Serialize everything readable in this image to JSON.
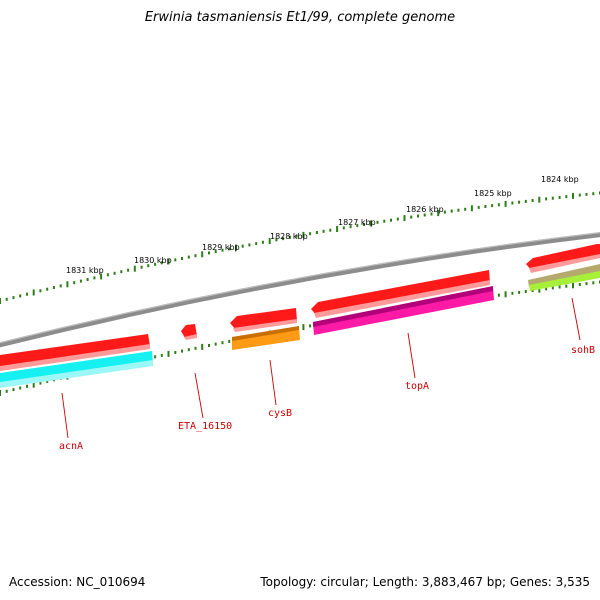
{
  "title": "Erwinia tasmaniensis Et1/99, complete genome",
  "footer": {
    "accession": "Accession: NC_010694",
    "summary": "Topology: circular; Length: 3,883,467 bp; Genes: 3,535"
  },
  "colors": {
    "backbone": "#8c8c8c",
    "tick": "#2e7d1a",
    "label": "#cc0000",
    "forward_gene": "#ff1a1a",
    "cyan": "#16f0f0",
    "orange": "#ff9a14",
    "magenta": "#ff1aa6",
    "olive": "#b5aa6e",
    "lime": "#a6f03a"
  },
  "scale_labels": [
    "1831 kbp",
    "1830 kbp",
    "1829 kbp",
    "1828 kbp",
    "1827 kbp",
    "1826 kbp",
    "1825 kbp",
    "1824 kbp"
  ],
  "genes": [
    {
      "name": "acnA"
    },
    {
      "name": "ETA_16150"
    },
    {
      "name": "cysB"
    },
    {
      "name": "topA"
    },
    {
      "name": "sohB"
    }
  ]
}
